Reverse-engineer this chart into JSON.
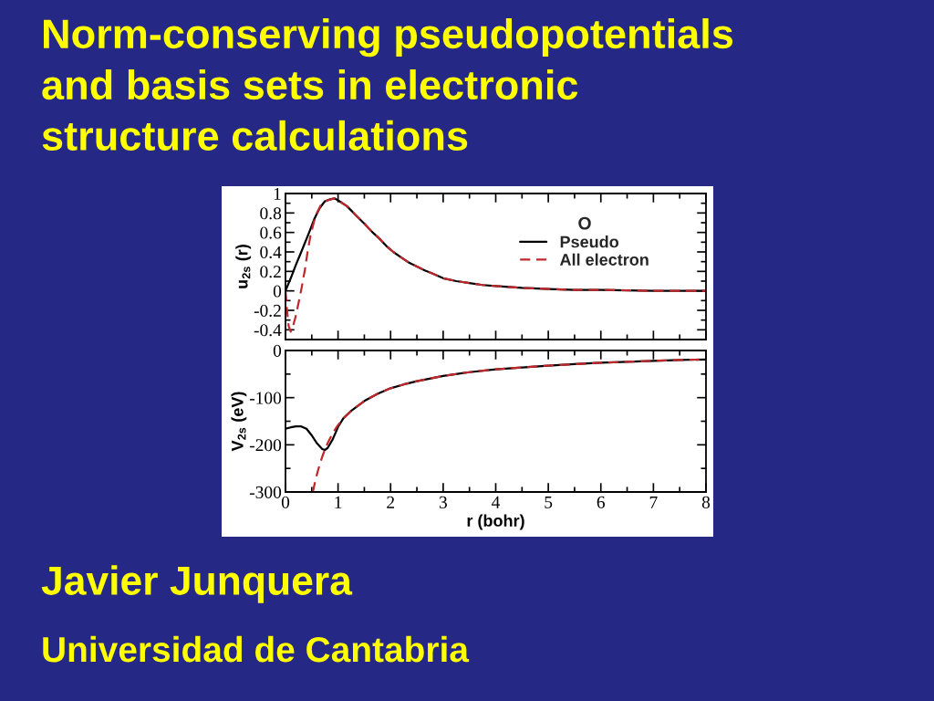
{
  "chart_data": [
    {
      "type": "line",
      "title": "Norm-conserving pseudopotentials\nand basis sets in electronic\nstructure calculations",
      "ylabel": "u$_{2s}$ (r)",
      "legend_title": "O",
      "legend": "top right",
      "tick_labels": "y",
      "xlim": [
        0,
        8
      ],
      "xticks": [
        0,
        {
          "value": 0.5,
          "label": null
        },
        1,
        {
          "value": 1.5,
          "label": null
        },
        2,
        {
          "value": 2.5,
          "label": null
        },
        3,
        {
          "value": 3.5,
          "label": null
        },
        4,
        {
          "value": 4.5,
          "label": null
        },
        5,
        {
          "value": 5.5,
          "label": null
        },
        6,
        {
          "value": 6.5,
          "label": null
        },
        7,
        {
          "value": 7.5,
          "label": null
        },
        8
      ],
      "ylim": [
        -0.5,
        1
      ],
      "yticks": [
        -0.4,
        {
          "value": -0.3,
          "label": null
        },
        -0.2,
        {
          "value": -0.1,
          "label": null
        },
        0,
        {
          "value": 0.1,
          "label": null
        },
        0.2,
        {
          "value": 0.3,
          "label": null
        },
        0.4,
        {
          "value": 0.5,
          "label": null
        },
        0.6,
        {
          "value": 0.7,
          "label": null
        },
        0.8,
        {
          "value": 0.9,
          "label": null
        },
        1
      ],
      "series": [
        {
          "name": "Pseudo",
          "color": "#000000",
          "line_style": "solid",
          "x": [
            0,
            0.1,
            0.2,
            0.3,
            0.45,
            0.55,
            0.65,
            0.75,
            0.85,
            0.93,
            1.0,
            1.17,
            1.35,
            1.5,
            1.64,
            1.8,
            1.92,
            2.05,
            2.21,
            2.35,
            2.5,
            2.65,
            2.79,
            3.0,
            3.25,
            3.5,
            3.75,
            4.0,
            4.5,
            5.0,
            5.5,
            6.0,
            7.0,
            8.0
          ],
          "values": [
            0,
            0.13,
            0.27,
            0.4,
            0.6,
            0.74,
            0.85,
            0.92,
            0.94,
            0.95,
            0.93,
            0.87,
            0.77,
            0.69,
            0.61,
            0.53,
            0.46,
            0.4,
            0.34,
            0.29,
            0.25,
            0.21,
            0.18,
            0.13,
            0.1,
            0.08,
            0.06,
            0.05,
            0.03,
            0.02,
            0.01,
            0.01,
            0,
            0
          ]
        },
        {
          "name": "All electron",
          "color": "#c0282d",
          "line_style": "dashed",
          "x": [
            0,
            0.03,
            0.06,
            0.1,
            0.14,
            0.19,
            0.25,
            0.31,
            0.37,
            0.42,
            0.48,
            0.57,
            0.68,
            0.8,
            0.93,
            1.0,
            1.17,
            1.35,
            1.5,
            1.64,
            1.8,
            1.92,
            2.05,
            2.21,
            2.35,
            2.5,
            2.65,
            2.79,
            3.0,
            3.25,
            3.5,
            3.75,
            4.0,
            4.5,
            5.0,
            5.5,
            6.0,
            7.0,
            8.0
          ],
          "values": [
            0,
            -0.2,
            -0.36,
            -0.42,
            -0.37,
            -0.27,
            -0.12,
            0.04,
            0.22,
            0.4,
            0.58,
            0.77,
            0.89,
            0.93,
            0.95,
            0.93,
            0.87,
            0.77,
            0.69,
            0.61,
            0.53,
            0.46,
            0.4,
            0.34,
            0.29,
            0.25,
            0.21,
            0.18,
            0.13,
            0.1,
            0.08,
            0.06,
            0.05,
            0.03,
            0.02,
            0.01,
            0.01,
            0,
            0
          ]
        }
      ]
    },
    {
      "type": "line",
      "xlabel": "r (bohr)",
      "ylabel": "V$_{2s}$ (eV)",
      "annotations": [
        "Javier Junquera",
        "Universidad de Cantabria"
      ],
      "xlim": [
        0,
        8
      ],
      "xticks": [
        0,
        {
          "value": 0.5,
          "label": null
        },
        1,
        {
          "value": 1.5,
          "label": null
        },
        2,
        {
          "value": 2.5,
          "label": null
        },
        3,
        {
          "value": 3.5,
          "label": null
        },
        4,
        {
          "value": 4.5,
          "label": null
        },
        5,
        {
          "value": 5.5,
          "label": null
        },
        6,
        {
          "value": 6.5,
          "label": null
        },
        7,
        {
          "value": 7.5,
          "label": null
        },
        8
      ],
      "ylim": [
        -300,
        0
      ],
      "yticks": [
        -300,
        {
          "value": -250,
          "label": null
        },
        -200,
        {
          "value": -150,
          "label": null
        },
        -100,
        {
          "value": -50,
          "label": null
        },
        0
      ],
      "series": [
        {
          "color": "#000000",
          "line_style": "solid",
          "x": [
            0,
            0.1,
            0.2,
            0.3,
            0.4,
            0.5,
            0.6,
            0.7,
            0.75,
            0.8,
            0.9,
            1.0,
            1.1,
            1.25,
            1.5,
            1.75,
            2.0,
            2.25,
            2.5,
            3.0,
            3.5,
            4.0,
            4.5,
            5,
            5.5,
            6,
            6.5,
            7,
            7.5,
            8
          ],
          "values": [
            -166,
            -163,
            -161,
            -161,
            -166,
            -180,
            -197,
            -209,
            -211,
            -207,
            -188,
            -162,
            -144,
            -128,
            -107,
            -92,
            -80,
            -72,
            -65,
            -54,
            -46,
            -40,
            -36,
            -32,
            -29,
            -26,
            -24,
            -22,
            -20,
            -19
          ]
        },
        {
          "color": "#c0282d",
          "line_style": "dashed",
          "x": [
            0.52,
            0.56,
            0.6,
            0.65,
            0.7,
            0.75,
            0.8,
            0.9,
            1.0,
            1.1,
            1.25,
            1.5,
            1.75,
            2.0,
            2.25,
            2.5,
            3.0,
            3.5,
            4.0,
            4.5,
            5,
            5.5,
            6,
            6.5,
            7,
            7.5,
            8
          ],
          "values": [
            -300,
            -280,
            -262,
            -242,
            -225,
            -210,
            -197,
            -175,
            -158,
            -144,
            -128,
            -107,
            -92,
            -80,
            -72,
            -65,
            -54,
            -46,
            -40,
            -36,
            -32,
            -29,
            -26,
            -24,
            -22,
            -20,
            -19
          ]
        }
      ]
    }
  ]
}
